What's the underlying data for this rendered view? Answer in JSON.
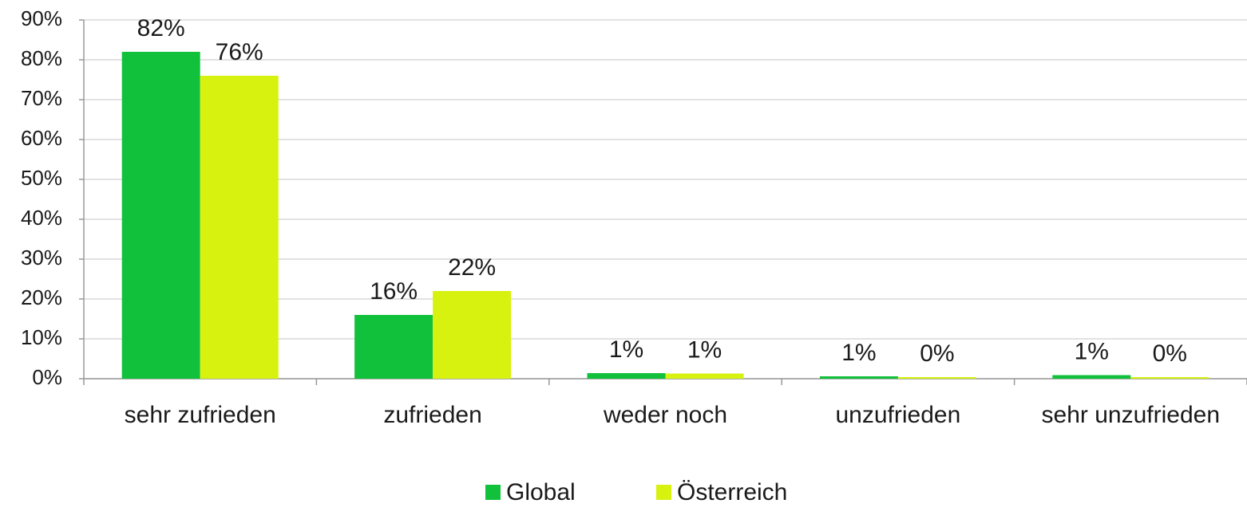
{
  "chart_data": {
    "type": "bar",
    "categories": [
      "sehr zufrieden",
      "zufrieden",
      "weder noch",
      "unzufrieden",
      "sehr unzufrieden"
    ],
    "series": [
      {
        "name": "Global",
        "color": "#12c13b",
        "values": [
          82,
          16,
          1.4,
          0.6,
          0.9
        ],
        "value_labels": [
          "82%",
          "16%",
          "1%",
          "1%",
          "1%"
        ]
      },
      {
        "name": "Österreich",
        "color": "#d7f20f",
        "values": [
          76,
          22,
          1.3,
          0.4,
          0.4
        ],
        "value_labels": [
          "76%",
          "22%",
          "1%",
          "0%",
          "0%"
        ]
      }
    ],
    "ylim": [
      0,
      90
    ],
    "yticks": [
      {
        "value": 0,
        "label": "0%"
      },
      {
        "value": 10,
        "label": "10%"
      },
      {
        "value": 20,
        "label": "20%"
      },
      {
        "value": 30,
        "label": "30%"
      },
      {
        "value": 40,
        "label": "40%"
      },
      {
        "value": 50,
        "label": "50%"
      },
      {
        "value": 60,
        "label": "60%"
      },
      {
        "value": 70,
        "label": "70%"
      },
      {
        "value": 80,
        "label": "80%"
      },
      {
        "value": 90,
        "label": "90%"
      }
    ],
    "grid": true,
    "legend": "bottom"
  }
}
